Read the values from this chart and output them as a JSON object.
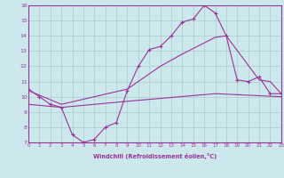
{
  "bg_color": "#cce8ec",
  "grid_color": "#aacccc",
  "line_color": "#993399",
  "xlabel": "Windchill (Refroidissement éolien,°C)",
  "ylim": [
    7,
    16
  ],
  "xlim": [
    0,
    23
  ],
  "wc_hours": [
    0,
    1,
    2,
    3,
    4,
    5,
    6,
    7,
    8,
    9,
    10,
    11,
    12,
    13,
    14,
    15,
    16,
    17,
    18,
    19,
    20,
    21,
    22,
    23
  ],
  "wc_vals": [
    10.5,
    10.0,
    9.5,
    9.3,
    7.5,
    7.0,
    7.2,
    8.0,
    8.3,
    10.4,
    12.0,
    13.1,
    13.3,
    14.0,
    14.9,
    15.1,
    16.0,
    15.5,
    14.0,
    11.1,
    11.0,
    11.3,
    10.2,
    10.2
  ],
  "upper_x": [
    0,
    3,
    9,
    12,
    14,
    17,
    18,
    21,
    22,
    23
  ],
  "upper_y": [
    10.4,
    9.5,
    10.5,
    12.0,
    12.8,
    13.9,
    14.0,
    11.1,
    11.0,
    10.2
  ],
  "lower_x": [
    0,
    3,
    9,
    17,
    23
  ],
  "lower_y": [
    9.5,
    9.3,
    9.7,
    10.2,
    10.0
  ]
}
